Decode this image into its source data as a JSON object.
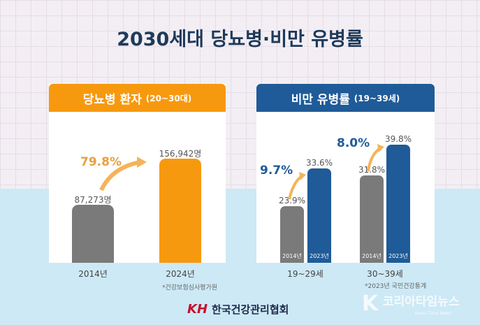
{
  "title": "2030세대 당뇨병·비만 유병률",
  "colors": {
    "orange": "#f7990f",
    "blue": "#1f5b98",
    "gray": "#7a7a7a",
    "title": "#1e3a5a"
  },
  "chart_data": [
    {
      "type": "bar",
      "title": "당뇨병 환자",
      "title_suffix": "(20~30대)",
      "categories": [
        "2014년",
        "2024년"
      ],
      "values": [
        87273,
        156942
      ],
      "value_labels": [
        "87,273명",
        "156,942명"
      ],
      "annotation": "79.8%",
      "source": "*건강보험심사평가원"
    },
    {
      "type": "bar",
      "title": "비만 유병률",
      "title_suffix": "(19~39세)",
      "categories": [
        "19~29세",
        "30~39세"
      ],
      "series": [
        {
          "name": "2014년",
          "values": [
            23.9,
            31.8
          ],
          "labels": [
            "23.9%",
            "31.8%"
          ]
        },
        {
          "name": "2023년",
          "values": [
            33.6,
            39.8
          ],
          "labels": [
            "33.6%",
            "39.8%"
          ]
        }
      ],
      "annotations": [
        "9.7%",
        "8.0%"
      ],
      "source": "*2023년 국민건강통계"
    }
  ],
  "footer": {
    "org": "한국건강관리협회",
    "logo": "KH",
    "watermark": "코리아타임뉴스",
    "watermark_sub": "Korea Time News"
  }
}
